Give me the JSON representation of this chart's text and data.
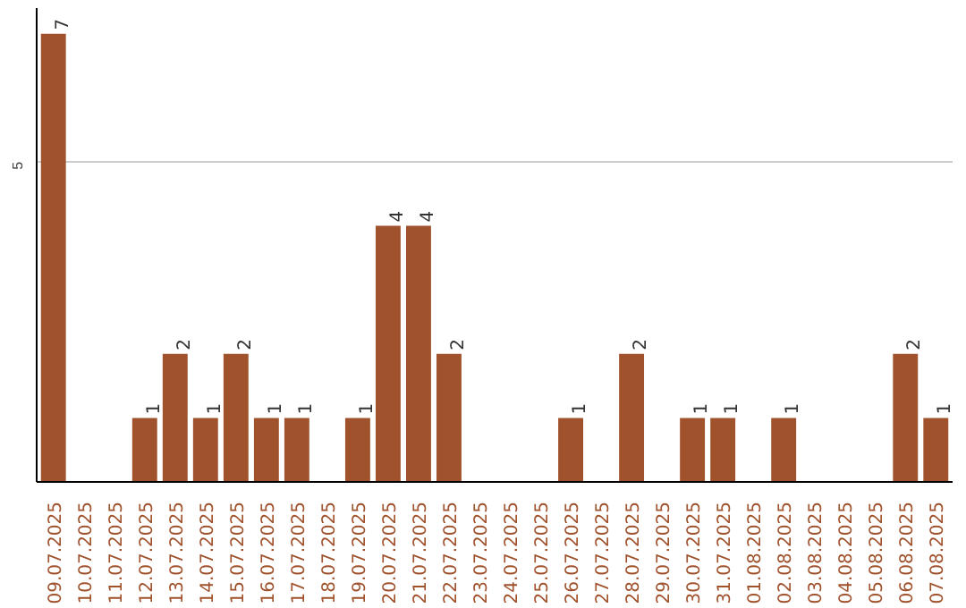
{
  "chart_data": {
    "type": "bar",
    "categories": [
      "09.07.2025",
      "10.07.2025",
      "11.07.2025",
      "12.07.2025",
      "13.07.2025",
      "14.07.2025",
      "15.07.2025",
      "16.07.2025",
      "17.07.2025",
      "18.07.2025",
      "19.07.2025",
      "20.07.2025",
      "21.07.2025",
      "22.07.2025",
      "23.07.2025",
      "24.07.2025",
      "25.07.2025",
      "26.07.2025",
      "27.07.2025",
      "28.07.2025",
      "29.07.2025",
      "30.07.2025",
      "31.07.2025",
      "01.08.2025",
      "02.08.2025",
      "03.08.2025",
      "04.08.2025",
      "05.08.2025",
      "06.08.2025",
      "07.08.2025"
    ],
    "values": [
      7,
      0,
      0,
      1,
      2,
      1,
      2,
      1,
      1,
      0,
      1,
      4,
      4,
      2,
      0,
      0,
      0,
      1,
      0,
      2,
      0,
      1,
      1,
      0,
      1,
      0,
      0,
      0,
      2,
      1
    ],
    "value_labels": [
      "7",
      null,
      null,
      "1",
      "2",
      "1",
      "2",
      "1",
      "1",
      null,
      "1",
      "4",
      "4",
      "2",
      null,
      null,
      null,
      "1",
      null,
      "2",
      null,
      "1",
      "1",
      null,
      "1",
      null,
      null,
      null,
      "2",
      "1"
    ],
    "color": "#a0522d",
    "ylim": [
      0,
      7.4
    ],
    "yticks": [
      5
    ],
    "grid": "y"
  }
}
